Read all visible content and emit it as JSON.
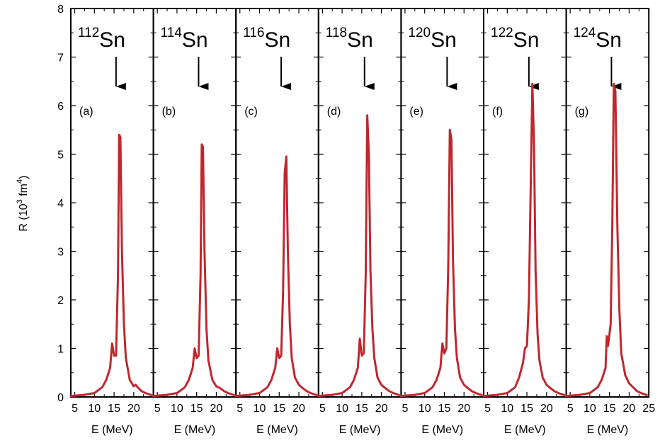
{
  "chart_data": {
    "type": "line",
    "ylabel": "R (10",
    "ylabel_sup": "3",
    "ylabel_unit": " fm",
    "ylabel_sup2": "4",
    "ylabel_close": ")",
    "xlabel": "E (MeV)",
    "ylim": [
      0,
      8
    ],
    "yticks": [
      "0",
      "1",
      "2",
      "3",
      "4",
      "5",
      "6",
      "7",
      "8"
    ],
    "xlim": [
      4,
      25
    ],
    "xticks_first": [
      "5",
      "10",
      "15",
      "20"
    ],
    "xticks_last": [
      "5",
      "10",
      "15",
      "20",
      "25"
    ],
    "line_color": "#c0272d",
    "panels": [
      {
        "tag": "(a)",
        "mass": "112",
        "element": "Sn",
        "arrow_e": 15.5,
        "x": [
          4,
          7,
          10,
          12,
          13,
          14,
          14.5,
          15,
          15.5,
          16,
          16.3,
          16.6,
          17,
          17.5,
          18,
          19,
          20,
          20.5,
          21,
          22,
          23,
          24.5
        ],
        "y": [
          0.02,
          0.04,
          0.08,
          0.2,
          0.35,
          0.6,
          1.1,
          0.85,
          0.85,
          2.5,
          5.4,
          5.35,
          3.0,
          1.5,
          0.8,
          0.35,
          0.22,
          0.25,
          0.2,
          0.12,
          0.08,
          0.04
        ]
      },
      {
        "tag": "(b)",
        "mass": "114",
        "element": "Sn",
        "arrow_e": 15.5,
        "x": [
          4,
          7,
          10,
          12,
          13,
          14,
          14.5,
          15,
          15.5,
          16,
          16.3,
          16.6,
          17,
          17.5,
          18,
          19,
          20,
          21,
          22,
          23,
          24.5
        ],
        "y": [
          0.02,
          0.04,
          0.08,
          0.2,
          0.35,
          0.6,
          1.0,
          0.8,
          0.85,
          2.5,
          5.2,
          5.15,
          3.0,
          1.4,
          0.75,
          0.35,
          0.22,
          0.18,
          0.12,
          0.08,
          0.04
        ]
      },
      {
        "tag": "(c)",
        "mass": "116",
        "element": "Sn",
        "arrow_e": 15.5,
        "x": [
          4,
          7,
          10,
          12,
          13,
          14,
          14.5,
          15,
          15.5,
          16,
          16.4,
          16.8,
          17.2,
          17.7,
          18.2,
          19,
          20,
          21,
          22,
          23,
          24.5
        ],
        "y": [
          0.02,
          0.04,
          0.08,
          0.2,
          0.35,
          0.6,
          1.0,
          0.8,
          0.85,
          2.2,
          4.6,
          4.95,
          3.0,
          1.5,
          0.8,
          0.4,
          0.25,
          0.18,
          0.12,
          0.08,
          0.04
        ]
      },
      {
        "tag": "(d)",
        "mass": "118",
        "element": "Sn",
        "arrow_e": 15.7,
        "x": [
          4,
          7,
          10,
          12,
          13,
          14,
          14.5,
          15,
          15.5,
          16,
          16.4,
          16.8,
          17.2,
          17.7,
          18.2,
          19,
          20,
          21,
          22,
          23,
          24.5
        ],
        "y": [
          0.02,
          0.04,
          0.08,
          0.2,
          0.35,
          0.6,
          1.2,
          0.85,
          0.9,
          2.5,
          5.8,
          5.0,
          2.6,
          1.4,
          0.8,
          0.4,
          0.25,
          0.18,
          0.12,
          0.08,
          0.04
        ]
      },
      {
        "tag": "(e)",
        "mass": "120",
        "element": "Sn",
        "arrow_e": 15.7,
        "x": [
          4,
          7,
          10,
          12,
          13,
          14,
          14.5,
          15,
          15.5,
          16,
          16.4,
          16.8,
          17.2,
          17.7,
          18.2,
          19,
          20,
          21,
          22,
          23,
          24.5
        ],
        "y": [
          0.02,
          0.04,
          0.08,
          0.2,
          0.35,
          0.6,
          1.1,
          0.9,
          1.0,
          2.7,
          5.5,
          5.3,
          2.8,
          1.4,
          0.8,
          0.4,
          0.25,
          0.18,
          0.12,
          0.08,
          0.04
        ]
      },
      {
        "tag": "(f)",
        "mass": "122",
        "element": "Sn",
        "arrow_e": 15.5,
        "x": [
          4,
          7,
          10,
          12,
          13,
          14,
          14.5,
          15,
          15.5,
          16,
          16.4,
          16.8,
          17.2,
          17.7,
          18.2,
          19,
          20,
          21,
          22,
          23,
          24.5
        ],
        "y": [
          0.02,
          0.04,
          0.08,
          0.2,
          0.4,
          0.7,
          1.0,
          1.05,
          2.0,
          4.5,
          6.45,
          5.2,
          2.6,
          1.3,
          0.75,
          0.4,
          0.25,
          0.18,
          0.12,
          0.08,
          0.04
        ]
      },
      {
        "tag": "(g)",
        "mass": "124",
        "element": "Sn",
        "arrow_e": 15.5,
        "x": [
          4,
          7,
          10,
          12,
          13,
          14,
          14.3,
          14.6,
          15,
          15.3,
          15.7,
          16.1,
          16.5,
          17,
          17.5,
          18,
          19,
          20,
          21,
          22,
          23,
          24.5
        ],
        "y": [
          0.02,
          0.04,
          0.08,
          0.2,
          0.35,
          0.6,
          1.25,
          1.05,
          1.3,
          1.5,
          3.5,
          6.45,
          6.3,
          3.5,
          1.8,
          0.9,
          0.45,
          0.28,
          0.2,
          0.12,
          0.08,
          0.04
        ]
      }
    ]
  }
}
